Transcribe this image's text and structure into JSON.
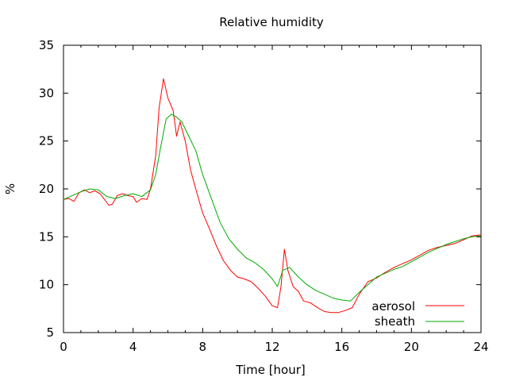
{
  "chart_data": {
    "type": "line",
    "title": "Relative humidity",
    "xlabel": "Time [hour]",
    "ylabel": "%",
    "xlim": [
      0,
      24
    ],
    "ylim": [
      5,
      35
    ],
    "xticks": [
      "0",
      "4",
      "8",
      "12",
      "16",
      "20",
      "24"
    ],
    "yticks": [
      "5",
      "10",
      "15",
      "20",
      "25",
      "30",
      "35"
    ],
    "grid": false,
    "legend_position": "bottom-right",
    "series": [
      {
        "name": "aerosol",
        "color": "#ff0000",
        "x": [
          0,
          0.3,
          0.6,
          0.9,
          1.2,
          1.5,
          1.8,
          2.1,
          2.4,
          2.6,
          2.8,
          3.1,
          3.4,
          3.7,
          4.0,
          4.2,
          4.5,
          4.8,
          5.0,
          5.3,
          5.5,
          5.75,
          6.0,
          6.3,
          6.5,
          6.7,
          7.0,
          7.3,
          7.6,
          8.0,
          8.4,
          8.8,
          9.2,
          9.6,
          10.0,
          10.4,
          10.8,
          11.2,
          11.6,
          12.0,
          12.3,
          12.5,
          12.7,
          12.9,
          13.2,
          13.5,
          13.8,
          14.2,
          14.6,
          15.0,
          15.4,
          15.8,
          16.2,
          16.6,
          17.0,
          17.5,
          18.0,
          18.5,
          19.0,
          19.5,
          20.0,
          20.5,
          21.0,
          21.5,
          22.0,
          22.5,
          23.0,
          23.5,
          24.0
        ],
        "values": [
          18.9,
          19.0,
          18.7,
          19.6,
          19.9,
          19.6,
          19.8,
          19.5,
          18.8,
          18.3,
          18.4,
          19.3,
          19.5,
          19.3,
          19.2,
          18.6,
          19.0,
          18.9,
          20.0,
          23.5,
          28.5,
          31.5,
          29.5,
          28.2,
          25.5,
          27.0,
          25.0,
          22.0,
          20.0,
          17.5,
          15.8,
          14.0,
          12.5,
          11.5,
          10.8,
          10.6,
          10.3,
          9.6,
          8.8,
          7.8,
          7.6,
          9.8,
          13.7,
          11.5,
          9.8,
          9.3,
          8.3,
          8.1,
          7.6,
          7.2,
          7.1,
          7.1,
          7.3,
          7.6,
          9.0,
          10.3,
          10.7,
          11.3,
          11.8,
          12.2,
          12.6,
          13.1,
          13.6,
          13.9,
          14.1,
          14.3,
          14.7,
          15.1,
          15.2
        ]
      },
      {
        "name": "sheath",
        "color": "#00aa00",
        "x": [
          0,
          0.5,
          1.0,
          1.5,
          2.0,
          2.5,
          3.0,
          3.5,
          4.0,
          4.5,
          5.0,
          5.3,
          5.6,
          5.9,
          6.2,
          6.5,
          6.8,
          7.2,
          7.6,
          8.0,
          8.5,
          9.0,
          9.5,
          10.0,
          10.5,
          11.0,
          11.5,
          12.0,
          12.3,
          12.6,
          13.0,
          13.5,
          14.0,
          14.5,
          15.0,
          15.5,
          16.0,
          16.5,
          17.0,
          17.5,
          18.0,
          18.5,
          19.0,
          19.5,
          20.0,
          20.5,
          21.0,
          21.5,
          22.0,
          22.5,
          23.0,
          23.5,
          24.0
        ],
        "values": [
          18.9,
          19.3,
          19.7,
          20.0,
          19.9,
          19.2,
          19.0,
          19.3,
          19.5,
          19.2,
          19.9,
          21.5,
          24.5,
          27.3,
          27.8,
          27.5,
          27.0,
          25.5,
          24.0,
          21.5,
          19.0,
          16.5,
          14.8,
          13.7,
          12.8,
          12.3,
          11.6,
          10.6,
          9.8,
          11.5,
          11.8,
          10.8,
          10.0,
          9.4,
          9.0,
          8.6,
          8.4,
          8.3,
          9.2,
          10.0,
          10.8,
          11.2,
          11.6,
          11.9,
          12.4,
          12.9,
          13.4,
          13.8,
          14.2,
          14.5,
          14.8,
          15.0,
          15.1
        ]
      }
    ]
  }
}
